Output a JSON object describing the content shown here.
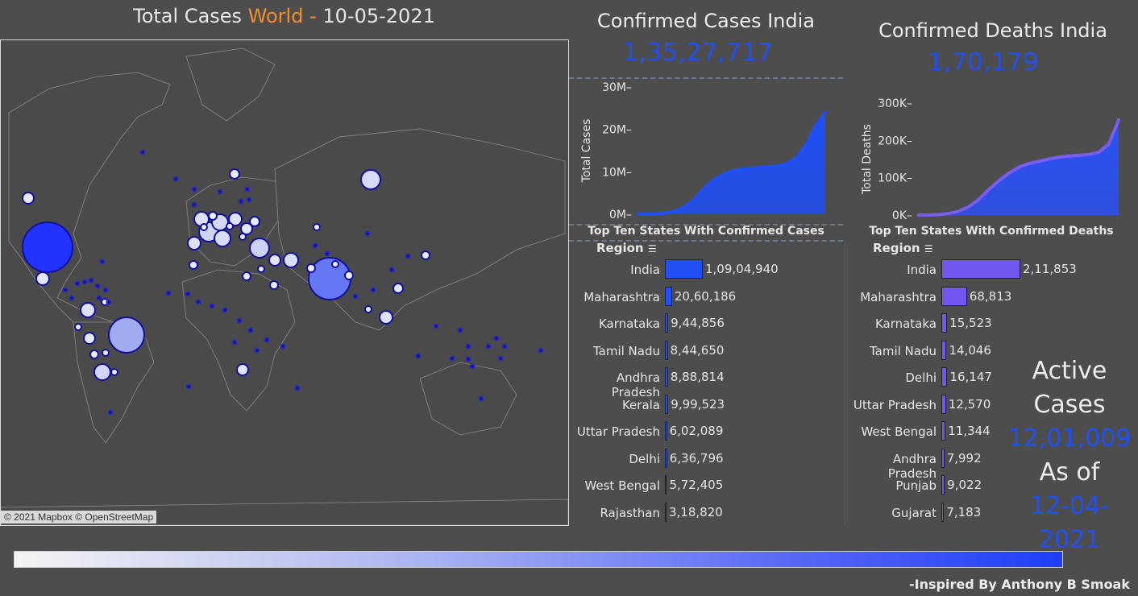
{
  "map": {
    "title_prefix": "Total Cases ",
    "title_highlight": "World",
    "title_sep": " - ",
    "title_date": "10-05-2021",
    "credit": "© 2021 Mapbox © OpenStreetMap"
  },
  "india_cases": {
    "title": "Confirmed Cases India",
    "value": "1,35,27,717"
  },
  "india_deaths": {
    "title": "Confirmed Deaths India",
    "value": "1,70,179"
  },
  "active": {
    "line1": "Active",
    "line2": "Cases",
    "value": "12,01,009",
    "line3": "As of",
    "date": "12-04-2021"
  },
  "credit": "-Inspired By Anthony B Smoak",
  "colors": {
    "cases_area": "#1f4ff5",
    "deaths_area": "#2a50f5",
    "deaths_line": "#7b5cf3",
    "cases_bar": "#1f4ff5",
    "deaths_bar": "#7257f0"
  },
  "chart_data": [
    {
      "type": "area",
      "title": "Total Cases",
      "ylabel": "Total Cases",
      "ylim": [
        0,
        30000000
      ],
      "yticks": [
        "0M",
        "10M",
        "20M",
        "30M"
      ],
      "ytick_values": [
        0,
        10000000,
        20000000,
        30000000
      ],
      "x": [
        0,
        1,
        2,
        3,
        4,
        5,
        6,
        7,
        8,
        9,
        10,
        11,
        12,
        13,
        14,
        15,
        16,
        17,
        18,
        19,
        20
      ],
      "values": [
        0,
        0,
        50000,
        300000,
        800000,
        1800000,
        3500000,
        6000000,
        8000000,
        9300000,
        10200000,
        10600000,
        10800000,
        11000000,
        11200000,
        11400000,
        12000000,
        13500000,
        16500000,
        21000000,
        24000000
      ]
    },
    {
      "type": "area",
      "title": "Total Deaths",
      "ylabel": "Total Deaths",
      "ylim": [
        0,
        300000
      ],
      "yticks": [
        "0K",
        "100K",
        "200K",
        "300K"
      ],
      "ytick_values": [
        0,
        100000,
        200000,
        300000
      ],
      "x": [
        0,
        1,
        2,
        3,
        4,
        5,
        6,
        7,
        8,
        9,
        10,
        11,
        12,
        13,
        14,
        15,
        16,
        17,
        18,
        19,
        20
      ],
      "values": [
        0,
        0,
        1000,
        4000,
        10000,
        22000,
        42000,
        68000,
        92000,
        112000,
        128000,
        138000,
        144000,
        150000,
        155000,
        158000,
        160000,
        162000,
        168000,
        190000,
        255000
      ]
    },
    {
      "type": "bar",
      "title": "Top Ten States With Confirmed Cases",
      "header": "Region",
      "categories": [
        "India",
        "Maharashtra",
        "Karnataka",
        "Tamil Nadu",
        "Andhra Pradesh",
        "Kerala",
        "Uttar Pradesh",
        "Delhi",
        "West Bengal",
        "Rajasthan"
      ],
      "values": [
        10904940,
        2060186,
        944856,
        844650,
        888814,
        999523,
        602089,
        636796,
        572405,
        318820
      ],
      "labels": [
        "1,09,04,940",
        "20,60,186",
        "9,44,856",
        "8,44,650",
        "8,88,814",
        "9,99,523",
        "6,02,089",
        "6,36,796",
        "5,72,405",
        "3,18,820"
      ]
    },
    {
      "type": "bar",
      "title": "Top Ten States With Confirmed Deaths",
      "header": "Region",
      "categories": [
        "India",
        "Maharashtra",
        "Karnataka",
        "Tamil Nadu",
        "Delhi",
        "Uttar Pradesh",
        "West Bengal",
        "Andhra Pradesh",
        "Punjab",
        "Gujarat"
      ],
      "values": [
        211853,
        68813,
        15523,
        14046,
        16147,
        12570,
        11344,
        7992,
        9022,
        7183
      ],
      "labels": [
        "2,11,853",
        "68,813",
        "15,523",
        "14,046",
        "16,147",
        "12,570",
        "11,344",
        "7,992",
        "9,022",
        "7,183"
      ]
    }
  ]
}
